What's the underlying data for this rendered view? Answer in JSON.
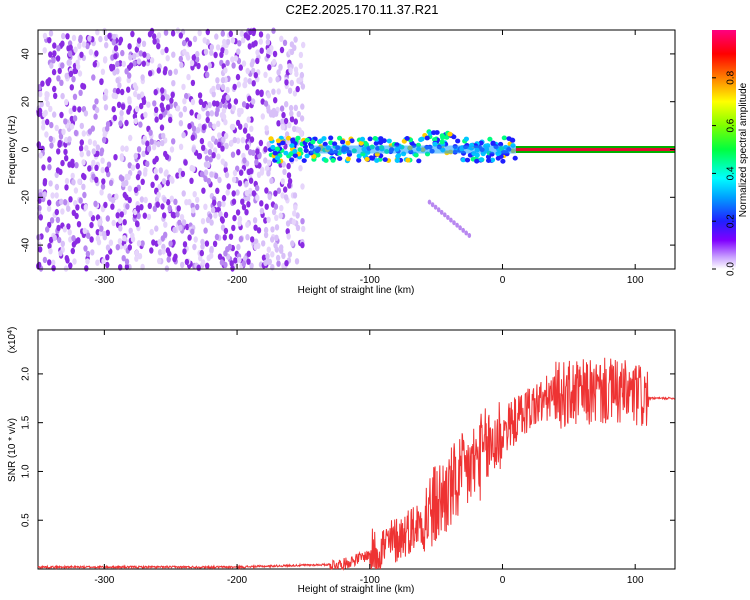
{
  "title": "C2E2.2025.170.11.37.R21",
  "chart_data": [
    {
      "type": "heatmap",
      "xlabel": "Height of straight line (km)",
      "ylabel": "Frequency (Hz)",
      "xlim": [
        -350,
        130
      ],
      "ylim": [
        -50,
        50
      ],
      "xticks": [
        -300,
        -200,
        -100,
        0,
        100
      ],
      "yticks": [
        -40,
        -20,
        0,
        20,
        40
      ],
      "tone_frequency_hz": 0,
      "colorbar": {
        "label": "Normalized spectral amplitude",
        "range": [
          0.0,
          1.0
        ],
        "ticks": [
          0.0,
          0.2,
          0.4,
          0.6,
          0.8
        ]
      },
      "segments": [
        {
          "x_range": [
            -350,
            -175
          ],
          "description_level": 0.15
        },
        {
          "x_range": [
            -175,
            -145
          ],
          "description_level": 0.3
        },
        {
          "x_range": [
            -145,
            10
          ],
          "description_level": 0.5
        },
        {
          "x_range": [
            10,
            130
          ],
          "description_level": 1.0
        }
      ]
    },
    {
      "type": "line",
      "xlabel": "Height of straight line (km)",
      "ylabel": "SNR (10 * v/v)",
      "y_multiplier": "(x10",
      "y_multiplier_exp": "4",
      "y_multiplier_close": ")",
      "xlim": [
        -350,
        130
      ],
      "ylim": [
        0,
        2.45
      ],
      "xticks": [
        -300,
        -200,
        -100,
        0,
        100
      ],
      "yticks": [
        0.5,
        1.0,
        1.5,
        2.0
      ],
      "line_color": "#ee3333",
      "series": [
        {
          "x": [
            -350,
            -200,
            -120,
            -100,
            -80,
            -60,
            -40,
            -20,
            0,
            20,
            40,
            60,
            80,
            100,
            110,
            130
          ],
          "y": [
            0.02,
            0.02,
            0.05,
            0.15,
            0.3,
            0.5,
            0.8,
            1.1,
            1.4,
            1.65,
            1.78,
            1.8,
            1.82,
            1.78,
            1.75,
            1.75
          ]
        }
      ]
    }
  ]
}
